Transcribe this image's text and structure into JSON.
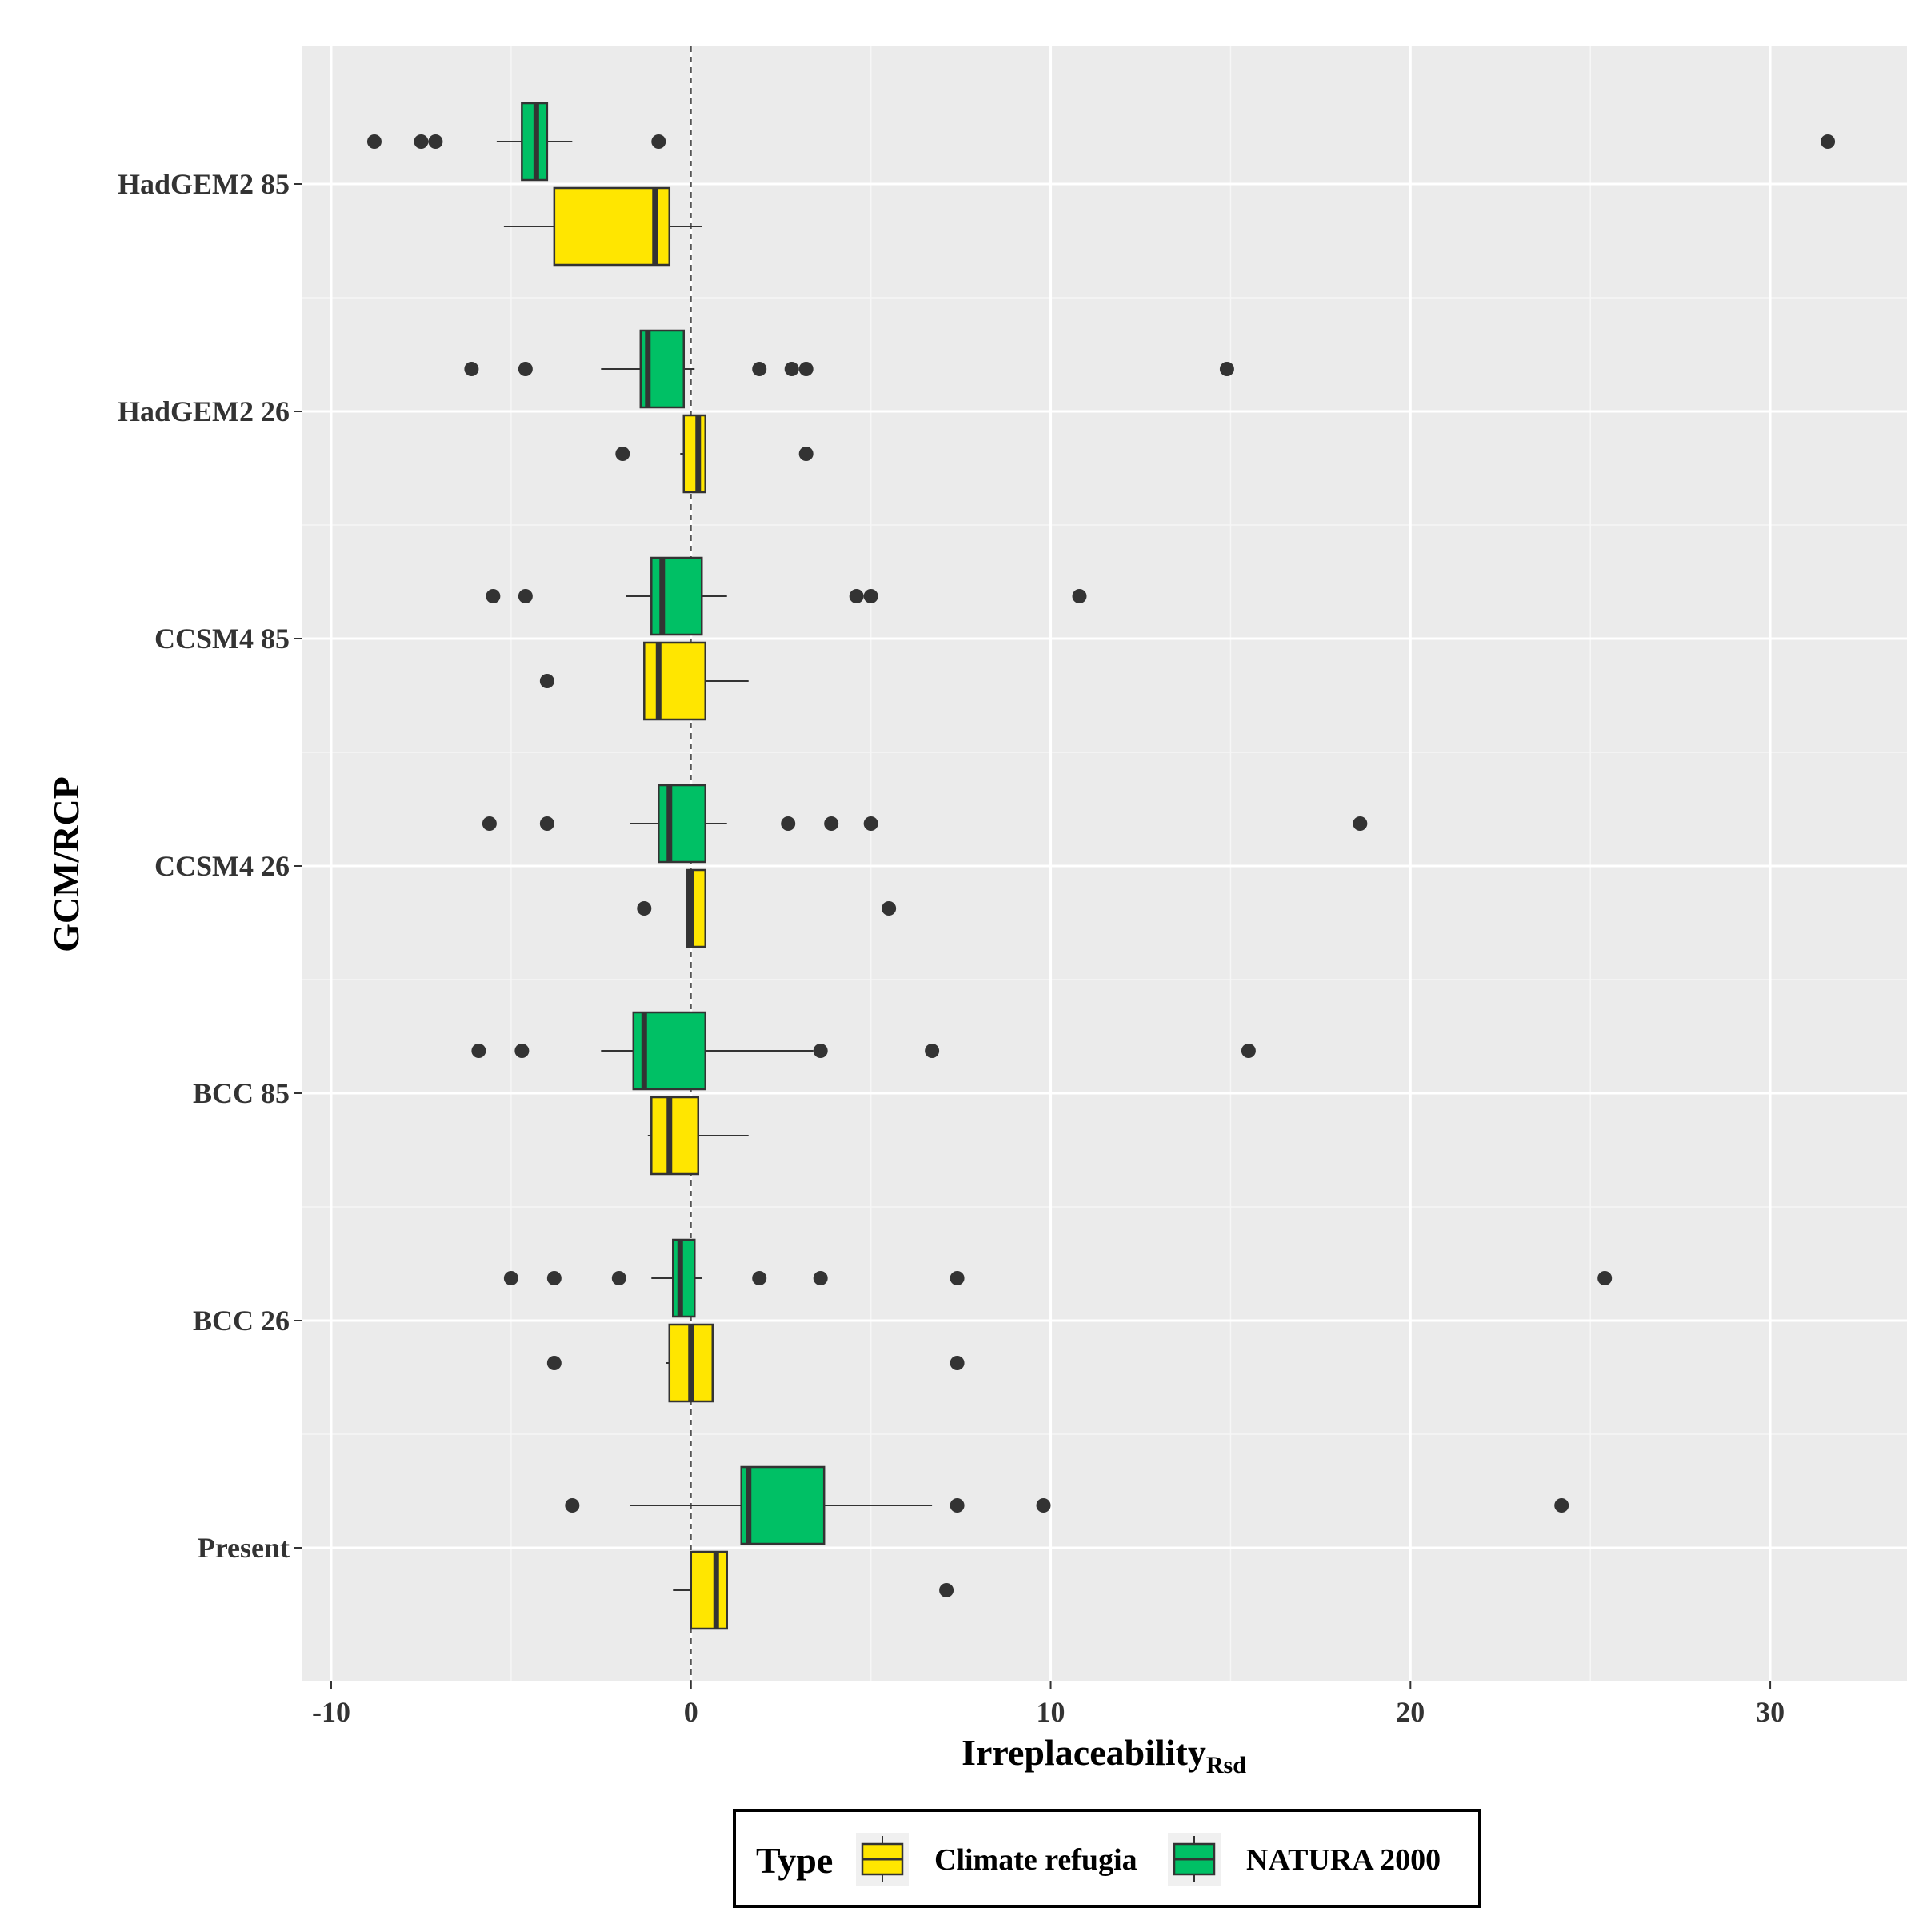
{
  "chart_data": {
    "type": "boxplot",
    "orientation": "horizontal",
    "xlabel": "Irreplaceability",
    "xlabel_sub": "Rsd",
    "ylabel": "GCM/RCP",
    "xlim": [
      -10.8,
      33.8
    ],
    "x_ticks": [
      -10,
      0,
      10,
      20,
      30
    ],
    "x_tick_labels": [
      "-10",
      "0",
      "10",
      "20",
      "30"
    ],
    "reference_line": 0,
    "grid": true,
    "legend": {
      "title": "Type",
      "position": "bottom",
      "entries": [
        {
          "label": "Climate refugia",
          "color": "#FFE600"
        },
        {
          "label": "NATURA 2000",
          "color": "#00C065"
        }
      ]
    },
    "categories": [
      "HadGEM2 85",
      "HadGEM2 26",
      "CCSM4 85",
      "CCSM4 26",
      "BCC 85",
      "BCC 26",
      "Present"
    ],
    "series": [
      {
        "name": "NATURA 2000",
        "color": "#00C065",
        "boxes": [
          {
            "category": "HadGEM2 85",
            "whisker_low": -5.4,
            "q1": -4.7,
            "median": -4.3,
            "q3": -4.0,
            "whisker_high": -3.3,
            "outliers": [
              -8.8,
              -7.5,
              -7.1,
              -0.9,
              31.6
            ]
          },
          {
            "category": "HadGEM2 26",
            "whisker_low": -2.5,
            "q1": -1.4,
            "median": -1.2,
            "q3": -0.2,
            "whisker_high": 0.1,
            "outliers": [
              -6.1,
              -4.6,
              1.9,
              2.8,
              3.2,
              14.9
            ]
          },
          {
            "category": "CCSM4 85",
            "whisker_low": -1.8,
            "q1": -1.1,
            "median": -0.8,
            "q3": 0.3,
            "whisker_high": 1.0,
            "outliers": [
              -5.5,
              -4.6,
              4.6,
              5.0,
              10.8
            ]
          },
          {
            "category": "CCSM4 26",
            "whisker_low": -1.7,
            "q1": -0.9,
            "median": -0.6,
            "q3": 0.4,
            "whisker_high": 1.0,
            "outliers": [
              -5.6,
              -4.0,
              2.7,
              3.9,
              5.0,
              18.6
            ]
          },
          {
            "category": "BCC 85",
            "whisker_low": -2.5,
            "q1": -1.6,
            "median": -1.3,
            "q3": 0.4,
            "whisker_high": 3.4,
            "outliers": [
              -5.9,
              -4.7,
              3.6,
              6.7,
              15.5
            ]
          },
          {
            "category": "BCC 26",
            "whisker_low": -1.1,
            "q1": -0.5,
            "median": -0.3,
            "q3": 0.1,
            "whisker_high": 0.3,
            "outliers": [
              -5.0,
              -3.8,
              -2.0,
              1.9,
              3.6,
              7.4,
              25.4
            ]
          },
          {
            "category": "Present",
            "whisker_low": -1.7,
            "q1": 1.4,
            "median": 1.6,
            "q3": 3.7,
            "whisker_high": 6.7,
            "outliers": [
              -3.3,
              7.4,
              9.8,
              24.2
            ]
          }
        ]
      },
      {
        "name": "Climate refugia",
        "color": "#FFE600",
        "boxes": [
          {
            "category": "HadGEM2 85",
            "whisker_low": -5.2,
            "q1": -3.8,
            "median": -1.0,
            "q3": -0.6,
            "whisker_high": 0.3,
            "outliers": []
          },
          {
            "category": "HadGEM2 26",
            "whisker_low": -0.3,
            "q1": -0.2,
            "median": 0.2,
            "q3": 0.4,
            "whisker_high": 0.4,
            "outliers": [
              -1.9,
              3.2
            ]
          },
          {
            "category": "CCSM4 85",
            "whisker_low": -1.3,
            "q1": -1.3,
            "median": -0.9,
            "q3": 0.4,
            "whisker_high": 1.6,
            "outliers": [
              -4.0
            ]
          },
          {
            "category": "CCSM4 26",
            "whisker_low": -0.1,
            "q1": -0.1,
            "median": 0.0,
            "q3": 0.4,
            "whisker_high": 0.4,
            "outliers": [
              -1.3,
              5.5
            ]
          },
          {
            "category": "BCC 85",
            "whisker_low": -1.2,
            "q1": -1.1,
            "median": -0.6,
            "q3": 0.2,
            "whisker_high": 1.6,
            "outliers": []
          },
          {
            "category": "BCC 26",
            "whisker_low": -0.7,
            "q1": -0.6,
            "median": 0.0,
            "q3": 0.6,
            "whisker_high": 0.6,
            "outliers": [
              -3.8,
              7.4
            ]
          },
          {
            "category": "Present",
            "whisker_low": -0.5,
            "q1": 0.0,
            "median": 0.7,
            "q3": 1.0,
            "whisker_high": 1.0,
            "outliers": [
              7.1
            ]
          }
        ]
      }
    ]
  }
}
